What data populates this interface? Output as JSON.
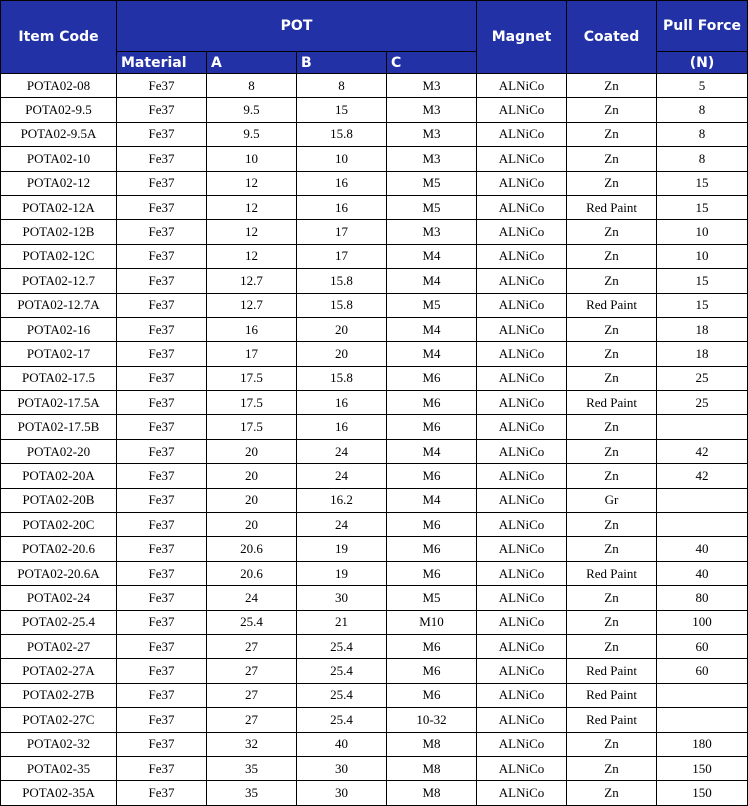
{
  "headers": {
    "item_code": "Item Code",
    "pot": "POT",
    "material": "Material",
    "a": "A",
    "b": "B",
    "c": "C",
    "magnet": "Magnet",
    "coated": "Coated",
    "pull_force": "Pull Force",
    "unit": "(N)"
  },
  "rows": [
    [
      "POTA02-08",
      "Fe37",
      "8",
      "8",
      "M3",
      "ALNiCo",
      "Zn",
      "5"
    ],
    [
      "POTA02-9.5",
      "Fe37",
      "9.5",
      "15",
      "M3",
      "ALNiCo",
      "Zn",
      "8"
    ],
    [
      "POTA02-9.5A",
      "Fe37",
      "9.5",
      "15.8",
      "M3",
      "ALNiCo",
      "Zn",
      "8"
    ],
    [
      "POTA02-10",
      "Fe37",
      "10",
      "10",
      "M3",
      "ALNiCo",
      "Zn",
      "8"
    ],
    [
      "POTA02-12",
      "Fe37",
      "12",
      "16",
      "M5",
      "ALNiCo",
      "Zn",
      "15"
    ],
    [
      "POTA02-12A",
      "Fe37",
      "12",
      "16",
      "M5",
      "ALNiCo",
      "Red Paint",
      "15"
    ],
    [
      "POTA02-12B",
      "Fe37",
      "12",
      "17",
      "M3",
      "ALNiCo",
      "Zn",
      "10"
    ],
    [
      "POTA02-12C",
      "Fe37",
      "12",
      "17",
      "M4",
      "ALNiCo",
      "Zn",
      "10"
    ],
    [
      "POTA02-12.7",
      "Fe37",
      "12.7",
      "15.8",
      "M4",
      "ALNiCo",
      "Zn",
      "15"
    ],
    [
      "POTA02-12.7A",
      "Fe37",
      "12.7",
      "15.8",
      "M5",
      "ALNiCo",
      "Red Paint",
      "15"
    ],
    [
      "POTA02-16",
      "Fe37",
      "16",
      "20",
      "M4",
      "ALNiCo",
      "Zn",
      "18"
    ],
    [
      "POTA02-17",
      "Fe37",
      "17",
      "20",
      "M4",
      "ALNiCo",
      "Zn",
      "18"
    ],
    [
      "POTA02-17.5",
      "Fe37",
      "17.5",
      "15.8",
      "M6",
      "ALNiCo",
      "Zn",
      "25"
    ],
    [
      "POTA02-17.5A",
      "Fe37",
      "17.5",
      "16",
      "M6",
      "ALNiCo",
      "Red Paint",
      "25"
    ],
    [
      "POTA02-17.5B",
      "Fe37",
      "17.5",
      "16",
      "M6",
      "ALNiCo",
      "Zn",
      ""
    ],
    [
      "POTA02-20",
      "Fe37",
      "20",
      "24",
      "M4",
      "ALNiCo",
      "Zn",
      "42"
    ],
    [
      "POTA02-20A",
      "Fe37",
      "20",
      "24",
      "M6",
      "ALNiCo",
      "Zn",
      "42"
    ],
    [
      "POTA02-20B",
      "Fe37",
      "20",
      "16.2",
      "M4",
      "ALNiCo",
      "Gr",
      ""
    ],
    [
      "POTA02-20C",
      "Fe37",
      "20",
      "24",
      "M6",
      "ALNiCo",
      "Zn",
      ""
    ],
    [
      "POTA02-20.6",
      "Fe37",
      "20.6",
      "19",
      "M6",
      "ALNiCo",
      "Zn",
      "40"
    ],
    [
      "POTA02-20.6A",
      "Fe37",
      "20.6",
      "19",
      "M6",
      "ALNiCo",
      "Red Paint",
      "40"
    ],
    [
      "POTA02-24",
      "Fe37",
      "24",
      "30",
      "M5",
      "ALNiCo",
      "Zn",
      "80"
    ],
    [
      "POTA02-25.4",
      "Fe37",
      "25.4",
      "21",
      "M10",
      "ALNiCo",
      "Zn",
      "100"
    ],
    [
      "POTA02-27",
      "Fe37",
      "27",
      "25.4",
      "M6",
      "ALNiCo",
      "Zn",
      "60"
    ],
    [
      "POTA02-27A",
      "Fe37",
      "27",
      "25.4",
      "M6",
      "ALNiCo",
      "Red Paint",
      "60"
    ],
    [
      "POTA02-27B",
      "Fe37",
      "27",
      "25.4",
      "M6",
      "ALNiCo",
      "Red Paint",
      ""
    ],
    [
      "POTA02-27C",
      "Fe37",
      "27",
      "25.4",
      "10-32",
      "ALNiCo",
      "Red Paint",
      ""
    ],
    [
      "POTA02-32",
      "Fe37",
      "32",
      "40",
      "M8",
      "ALNiCo",
      "Zn",
      "180"
    ],
    [
      "POTA02-35",
      "Fe37",
      "35",
      "30",
      "M8",
      "ALNiCo",
      "Zn",
      "150"
    ],
    [
      "POTA02-35A",
      "Fe37",
      "35",
      "30",
      "M8",
      "ALNiCo",
      "Zn",
      "150"
    ]
  ]
}
